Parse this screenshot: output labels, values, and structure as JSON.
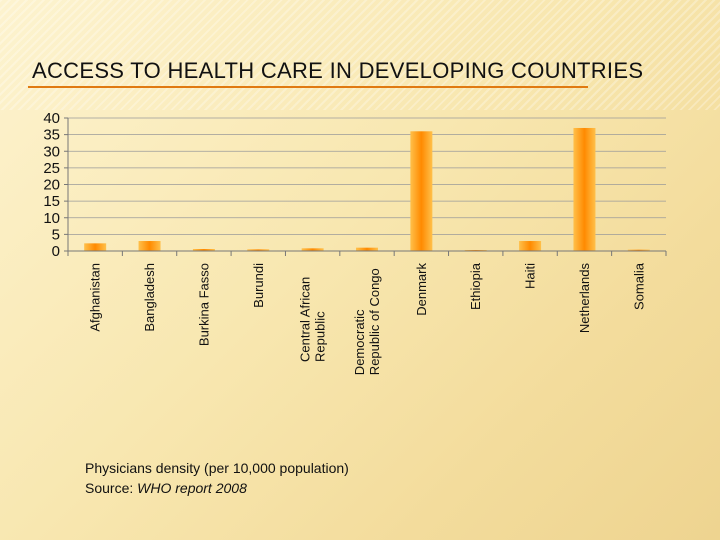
{
  "slide": {
    "title": "ACCESS TO HEALTH CARE IN DEVELOPING COUNTRIES",
    "caption_line1": "Physicians density (per 10,000 population)",
    "caption_source_prefix": "Source: ",
    "caption_source_italic": "WHO report 2008"
  },
  "colors": {
    "accent": "#e07a12",
    "bar_light": "#ffc04a",
    "bar_dark": "#ff8a00"
  },
  "chart_data": {
    "type": "bar",
    "title": "",
    "xlabel": "",
    "ylabel": "",
    "ylim": [
      0,
      40
    ],
    "yticks": [
      0,
      5,
      10,
      15,
      20,
      25,
      30,
      35,
      40
    ],
    "grid": true,
    "categories": [
      [
        "Afghanistan"
      ],
      [
        "Bangladesh"
      ],
      [
        "Burkina Fasso"
      ],
      [
        "Burundi"
      ],
      [
        "Central African",
        "Republic"
      ],
      [
        "Democratic",
        "Republic of Congo"
      ],
      [
        "Denmark"
      ],
      [
        "Ethiopia"
      ],
      [
        "Haiti"
      ],
      [
        "Netherlands"
      ],
      [
        "Somalia"
      ]
    ],
    "values": [
      2.3,
      3.0,
      0.6,
      0.5,
      0.8,
      1.0,
      36.0,
      0.3,
      3.0,
      37.0,
      0.4
    ]
  }
}
